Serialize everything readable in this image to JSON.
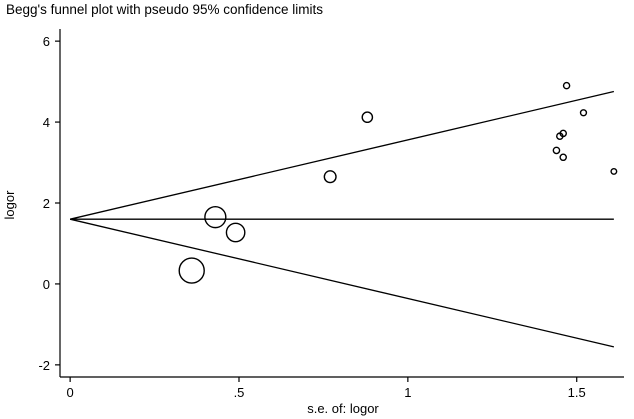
{
  "chart_data": {
    "type": "scatter",
    "title": "Begg's funnel plot with pseudo 95% confidence limits",
    "xlabel": "s.e. of: logor",
    "ylabel": "logor",
    "xlim": [
      -0.03,
      1.64
    ],
    "ylim": [
      -2.3,
      6.3
    ],
    "xticks": [
      {
        "value": 0,
        "label": "0"
      },
      {
        "value": 0.5,
        "label": ".5"
      },
      {
        "value": 1,
        "label": "1"
      },
      {
        "value": 1.5,
        "label": "1.5"
      }
    ],
    "yticks": [
      {
        "value": -2,
        "label": "-2"
      },
      {
        "value": 0,
        "label": "0"
      },
      {
        "value": 2,
        "label": "2"
      },
      {
        "value": 4,
        "label": "4"
      },
      {
        "value": 6,
        "label": "6"
      }
    ],
    "pooled_estimate": 1.6,
    "confidence_multiplier": 1.96,
    "lines_x_range": [
      0,
      1.61
    ],
    "marker_style": "hollow circle, size inversely proportional to s.e.",
    "line_color": "#000000",
    "points": [
      {
        "x": 0.36,
        "y": 0.33
      },
      {
        "x": 0.43,
        "y": 1.65
      },
      {
        "x": 0.49,
        "y": 1.27
      },
      {
        "x": 0.77,
        "y": 2.65
      },
      {
        "x": 0.88,
        "y": 4.12
      },
      {
        "x": 1.44,
        "y": 3.3
      },
      {
        "x": 1.45,
        "y": 3.65
      },
      {
        "x": 1.46,
        "y": 3.72
      },
      {
        "x": 1.46,
        "y": 3.13
      },
      {
        "x": 1.47,
        "y": 4.9
      },
      {
        "x": 1.52,
        "y": 4.23
      },
      {
        "x": 1.61,
        "y": 2.78
      }
    ]
  }
}
